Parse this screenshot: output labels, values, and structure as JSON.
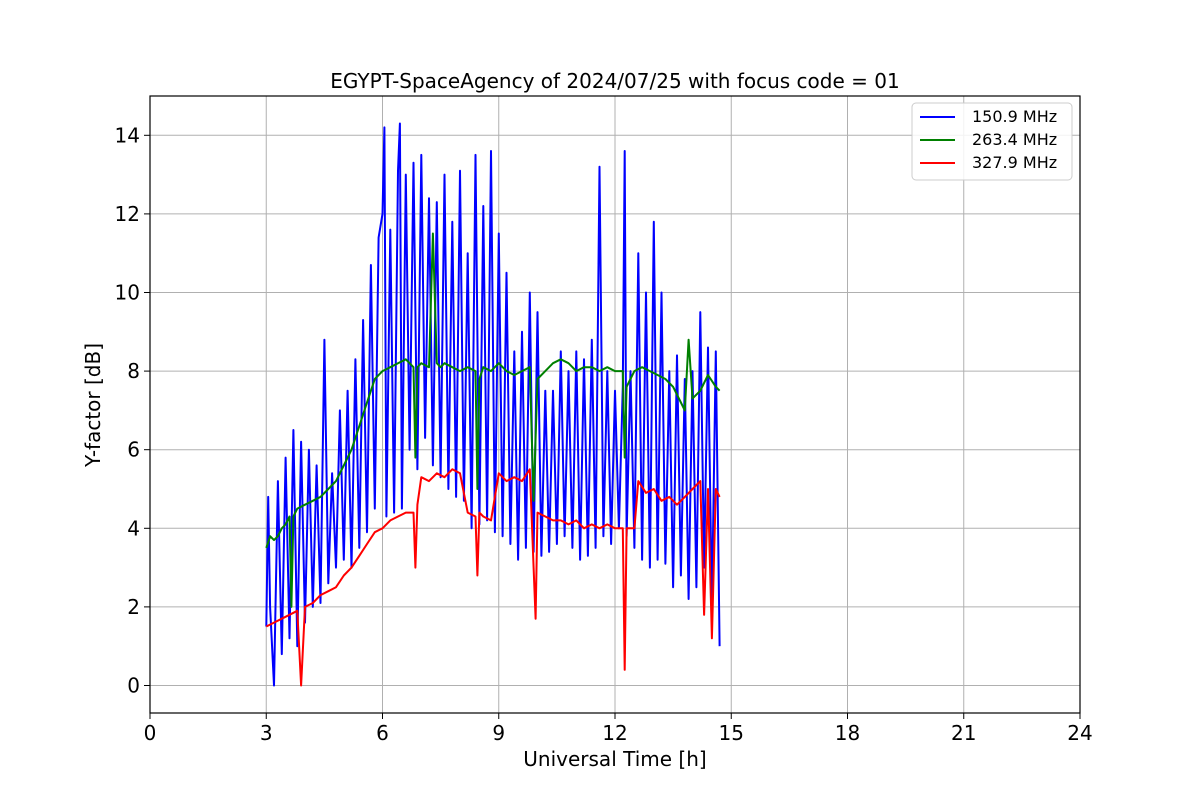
{
  "chart_data": {
    "type": "line",
    "title": "EGYPT-SpaceAgency of 2024/07/25 with focus code = 01",
    "xlabel": "Universal Time [h]",
    "ylabel": "Y-factor [dB]",
    "xlim": [
      0,
      24
    ],
    "ylim": [
      -0.7,
      15
    ],
    "xticks": [
      0,
      3,
      6,
      9,
      12,
      15,
      18,
      21,
      24
    ],
    "yticks": [
      0,
      2,
      4,
      6,
      8,
      10,
      12,
      14
    ],
    "grid": true,
    "legend_position": "top-right",
    "series": [
      {
        "name": "150.9 MHz",
        "color": "#0000ff",
        "x": [
          3.0,
          3.05,
          3.1,
          3.2,
          3.3,
          3.4,
          3.5,
          3.6,
          3.7,
          3.8,
          3.9,
          4.0,
          4.1,
          4.2,
          4.3,
          4.4,
          4.5,
          4.6,
          4.7,
          4.8,
          4.9,
          5.0,
          5.1,
          5.2,
          5.3,
          5.4,
          5.5,
          5.6,
          5.7,
          5.8,
          5.9,
          6.0,
          6.05,
          6.1,
          6.2,
          6.3,
          6.4,
          6.45,
          6.5,
          6.6,
          6.7,
          6.8,
          6.9,
          7.0,
          7.1,
          7.2,
          7.3,
          7.4,
          7.5,
          7.6,
          7.7,
          7.8,
          7.9,
          8.0,
          8.1,
          8.2,
          8.3,
          8.4,
          8.5,
          8.6,
          8.7,
          8.8,
          8.9,
          9.0,
          9.1,
          9.2,
          9.3,
          9.4,
          9.5,
          9.6,
          9.7,
          9.8,
          9.9,
          10.0,
          10.1,
          10.2,
          10.3,
          10.4,
          10.5,
          10.6,
          10.7,
          10.8,
          10.9,
          11.0,
          11.1,
          11.2,
          11.3,
          11.4,
          11.5,
          11.6,
          11.7,
          11.8,
          11.9,
          12.0,
          12.1,
          12.2,
          12.25,
          12.3,
          12.4,
          12.5,
          12.6,
          12.7,
          12.8,
          12.9,
          13.0,
          13.1,
          13.2,
          13.3,
          13.4,
          13.5,
          13.6,
          13.7,
          13.8,
          13.9,
          14.0,
          14.1,
          14.2,
          14.3,
          14.4,
          14.5,
          14.6,
          14.7
        ],
        "y": [
          1.5,
          4.8,
          2.0,
          0.0,
          5.2,
          0.8,
          5.8,
          1.2,
          6.5,
          1.0,
          6.2,
          1.6,
          6.0,
          2.0,
          5.6,
          2.1,
          8.8,
          2.6,
          5.4,
          3.0,
          7.0,
          3.2,
          7.5,
          3.0,
          8.3,
          3.5,
          9.3,
          3.9,
          10.7,
          4.5,
          11.4,
          12.0,
          14.2,
          4.3,
          11.6,
          4.4,
          13.1,
          14.3,
          4.5,
          13.0,
          6.0,
          13.3,
          5.5,
          13.5,
          6.3,
          12.4,
          5.6,
          12.3,
          5.3,
          13.0,
          5.0,
          11.8,
          4.8,
          13.1,
          4.7,
          11.0,
          4.0,
          13.5,
          4.1,
          12.2,
          4.2,
          13.6,
          3.9,
          11.5,
          3.8,
          10.5,
          3.6,
          8.5,
          3.2,
          9.0,
          3.5,
          10.0,
          3.4,
          9.5,
          3.3,
          7.5,
          3.4,
          7.5,
          3.6,
          8.5,
          3.8,
          8.0,
          3.5,
          8.5,
          3.2,
          8.3,
          3.3,
          8.8,
          3.5,
          13.2,
          3.8,
          8.0,
          3.6,
          7.5,
          4.0,
          7.6,
          13.6,
          3.8,
          8.0,
          3.5,
          11.0,
          3.2,
          10.0,
          3.0,
          11.8,
          3.2,
          10.0,
          3.1,
          8.0,
          2.5,
          8.4,
          2.8,
          7.8,
          2.2,
          8.0,
          2.5,
          9.5,
          3.0,
          8.6,
          2.0,
          8.5,
          1.0
        ]
      },
      {
        "name": "263.4 MHz",
        "color": "#008000",
        "x": [
          3.0,
          3.1,
          3.2,
          3.3,
          3.4,
          3.5,
          3.6,
          3.65,
          3.7,
          3.8,
          4.0,
          4.2,
          4.4,
          4.6,
          4.8,
          5.0,
          5.2,
          5.4,
          5.6,
          5.8,
          6.0,
          6.2,
          6.4,
          6.6,
          6.8,
          6.85,
          6.9,
          7.0,
          7.2,
          7.3,
          7.4,
          7.5,
          7.6,
          7.8,
          8.0,
          8.2,
          8.4,
          8.45,
          8.5,
          8.6,
          8.8,
          9.0,
          9.2,
          9.4,
          9.6,
          9.8,
          9.9,
          10.0,
          10.2,
          10.4,
          10.6,
          10.8,
          11.0,
          11.2,
          11.4,
          11.6,
          11.8,
          12.0,
          12.2,
          12.25,
          12.3,
          12.5,
          12.7,
          12.9,
          13.1,
          13.3,
          13.5,
          13.6,
          13.7,
          13.8,
          13.9,
          14.0,
          14.2,
          14.4,
          14.6,
          14.7
        ],
        "y": [
          3.5,
          3.8,
          3.7,
          3.8,
          4.0,
          4.1,
          4.3,
          2.0,
          4.3,
          4.5,
          4.6,
          4.7,
          4.8,
          5.0,
          5.2,
          5.6,
          6.0,
          6.6,
          7.2,
          7.8,
          8.0,
          8.1,
          8.2,
          8.3,
          8.1,
          5.8,
          8.1,
          8.2,
          8.1,
          11.5,
          8.2,
          8.1,
          8.2,
          8.1,
          8.0,
          8.1,
          8.0,
          5.0,
          7.8,
          8.1,
          8.0,
          8.2,
          8.0,
          7.9,
          8.0,
          8.1,
          4.7,
          7.8,
          8.0,
          8.2,
          8.3,
          8.2,
          8.0,
          8.1,
          8.1,
          8.0,
          8.1,
          8.0,
          8.0,
          5.8,
          7.6,
          8.0,
          8.1,
          8.0,
          7.9,
          7.8,
          7.6,
          7.4,
          7.2,
          7.0,
          8.8,
          7.3,
          7.5,
          7.9,
          7.6,
          7.5
        ]
      },
      {
        "name": "327.9 MHz",
        "color": "#ff0000",
        "x": [
          3.0,
          3.2,
          3.4,
          3.6,
          3.8,
          3.9,
          4.0,
          4.2,
          4.4,
          4.6,
          4.8,
          5.0,
          5.2,
          5.4,
          5.6,
          5.8,
          6.0,
          6.2,
          6.4,
          6.6,
          6.8,
          6.85,
          6.9,
          7.0,
          7.2,
          7.4,
          7.6,
          7.8,
          8.0,
          8.2,
          8.4,
          8.45,
          8.5,
          8.6,
          8.8,
          9.0,
          9.2,
          9.4,
          9.6,
          9.8,
          9.9,
          9.95,
          10.0,
          10.2,
          10.4,
          10.6,
          10.8,
          11.0,
          11.2,
          11.4,
          11.6,
          11.8,
          12.0,
          12.2,
          12.25,
          12.3,
          12.5,
          12.6,
          12.8,
          13.0,
          13.2,
          13.4,
          13.6,
          13.8,
          14.0,
          14.2,
          14.3,
          14.4,
          14.5,
          14.6,
          14.7
        ],
        "y": [
          1.5,
          1.6,
          1.7,
          1.8,
          1.9,
          0.0,
          2.0,
          2.1,
          2.3,
          2.4,
          2.5,
          2.8,
          3.0,
          3.3,
          3.6,
          3.9,
          4.0,
          4.2,
          4.3,
          4.4,
          4.4,
          3.0,
          4.6,
          5.3,
          5.2,
          5.4,
          5.3,
          5.5,
          5.4,
          4.4,
          4.3,
          2.8,
          4.4,
          4.3,
          4.2,
          5.4,
          5.2,
          5.3,
          5.2,
          5.5,
          3.0,
          1.7,
          4.4,
          4.3,
          4.2,
          4.2,
          4.1,
          4.2,
          4.0,
          4.1,
          4.0,
          4.1,
          4.0,
          4.0,
          0.4,
          4.0,
          4.0,
          5.2,
          4.9,
          5.0,
          4.7,
          4.8,
          4.6,
          4.8,
          5.0,
          5.2,
          1.8,
          5.0,
          1.2,
          5.0,
          4.8
        ]
      }
    ]
  }
}
